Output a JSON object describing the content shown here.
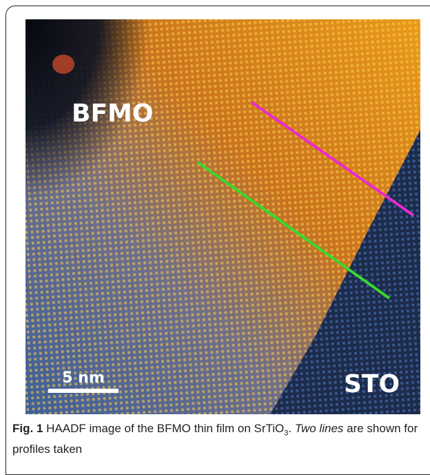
{
  "figure": {
    "labels": {
      "film": "BFMO",
      "substrate": "STO"
    },
    "scale_bar": "5 nm",
    "caption": {
      "label": "Fig. 1",
      "text": "HAADF image of the BFMO thin film on SrTiO",
      "subscript": "3",
      "separator": ". ",
      "emphasis": "Two lines",
      "rest": " are shown for profiles taken"
    }
  }
}
